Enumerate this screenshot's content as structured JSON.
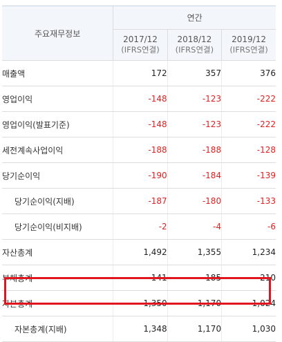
{
  "table": {
    "label_header": "주요재무정보",
    "period_header": "연간",
    "years": [
      {
        "year": "2017/12",
        "basis": "(IFRS연결)"
      },
      {
        "year": "2018/12",
        "basis": "(IFRS연결)"
      },
      {
        "year": "2019/12",
        "basis": "(IFRS연결)"
      }
    ],
    "rows": [
      {
        "label": "매출액",
        "values": [
          "172",
          "357",
          "376"
        ]
      },
      {
        "label": "영업이익",
        "values": [
          "-148",
          "-123",
          "-222"
        ]
      },
      {
        "label": "영업이익(발표기준)",
        "values": [
          "-148",
          "-123",
          "-222"
        ]
      },
      {
        "label": "세전계속사업이익",
        "values": [
          "-188",
          "-188",
          "-128"
        ]
      },
      {
        "label": "당기순이익",
        "values": [
          "-190",
          "-184",
          "-139"
        ]
      },
      {
        "label": "당기순이익(지배)",
        "values": [
          "-187",
          "-180",
          "-133"
        ]
      },
      {
        "label": "당기순이익(비지배)",
        "values": [
          "-2",
          "-4",
          "-6"
        ]
      },
      {
        "label": "자산총계",
        "values": [
          "1,492",
          "1,355",
          "1,234"
        ]
      },
      {
        "label": "부채총계",
        "values": [
          "141",
          "185",
          "210"
        ]
      },
      {
        "label": "자본총계",
        "values": [
          "1,350",
          "1,170",
          "1,024"
        ]
      },
      {
        "label": "자본총계(지배)",
        "values": [
          "1,348",
          "1,170",
          "1,030"
        ]
      }
    ]
  },
  "colors": {
    "negative": "#e02020",
    "highlight_border": "#e0141e",
    "header_bg": "#f3f6fa"
  }
}
